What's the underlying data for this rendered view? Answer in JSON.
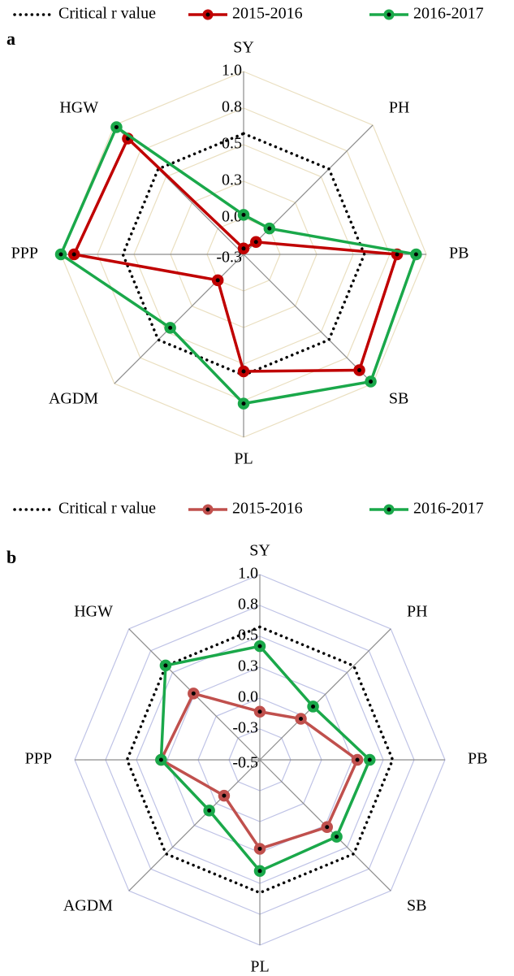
{
  "chart_data": [
    {
      "type": "radar",
      "label": "a",
      "categories": [
        "SY",
        "PH",
        "PB",
        "SB",
        "PL",
        "AGDM",
        "PPP",
        "HGW"
      ],
      "ylim": [
        -0.25,
        1.0
      ],
      "yticks": [
        {
          "value": -0.25,
          "label": "-0.3"
        },
        {
          "value": 0,
          "label": "0.0"
        },
        {
          "value": 0.25,
          "label": "0.3"
        },
        {
          "value": 0.5,
          "label": "0.5"
        },
        {
          "value": 0.75,
          "label": "0.8"
        },
        {
          "value": 1.0,
          "label": "1.0"
        }
      ],
      "grid_color": "#eadfc0",
      "series": [
        {
          "name": "Critical r value",
          "color": "#000000",
          "line_style": "dotted",
          "values": [
            0.576,
            0.576,
            0.576,
            0.576,
            0.576,
            0.576,
            0.576,
            0.576
          ]
        },
        {
          "name": "2015-2016",
          "color": "#c00000",
          "line_style": "solid",
          "values": [
            -0.21,
            -0.13,
            0.8,
            0.87,
            0.55,
            0.0,
            0.91,
            0.87
          ]
        },
        {
          "name": "2016-2017",
          "color": "#1aa84a",
          "line_style": "solid",
          "values": [
            0.02,
            0.0,
            0.93,
            0.98,
            0.77,
            0.46,
            1.0,
            0.98
          ]
        }
      ]
    },
    {
      "type": "radar",
      "label": "b",
      "categories": [
        "SY",
        "PH",
        "PB",
        "SB",
        "PL",
        "AGDM",
        "PPP",
        "HGW"
      ],
      "ylim": [
        -0.5,
        1.0
      ],
      "yticks": [
        -0.5,
        {
          "value": -0.25,
          "label": "-0.3"
        },
        {
          "value": 0,
          "label": "0.0"
        },
        {
          "value": 0.25,
          "label": "0.3"
        },
        {
          "value": 0.5,
          "label": "0.5"
        },
        {
          "value": 0.75,
          "label": "0.8"
        },
        {
          "value": 1.0,
          "label": "1.0"
        }
      ],
      "grid_color": "#bfc3e6",
      "series": [
        {
          "name": "Critical r value",
          "color": "#000000",
          "line_style": "dotted",
          "values": [
            0.576,
            0.576,
            0.576,
            0.576,
            0.576,
            0.576,
            0.576,
            0.576
          ]
        },
        {
          "name": "2015-2016",
          "color": "#c0504d",
          "line_style": "solid",
          "values": [
            -0.11,
            -0.03,
            0.29,
            0.27,
            0.22,
            -0.09,
            0.3,
            0.26
          ]
        },
        {
          "name": "2016-2017",
          "color": "#1aa84a",
          "line_style": "solid",
          "values": [
            0.42,
            0.11,
            0.39,
            0.38,
            0.4,
            0.08,
            0.3,
            0.58
          ]
        }
      ]
    }
  ]
}
